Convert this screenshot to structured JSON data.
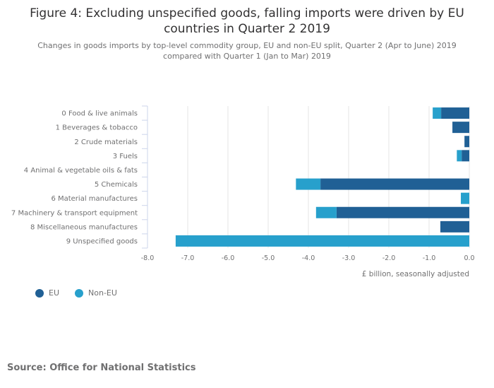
{
  "title_line1": "Figure 4: Excluding unspecified goods, falling imports were driven by EU",
  "title_line2": "countries in Quarter 2 2019",
  "subtitle_line1": "Changes in goods imports by top-level commodity group, EU and non-EU split, Quarter 2 (Apr to June) 2019",
  "subtitle_line2": "compared with Quarter 1 (Jan to Mar) 2019",
  "source": "Source: Office for National Statistics",
  "colors": {
    "eu": "#206095",
    "non_eu": "#27a0cc",
    "grid": "#e6e6e6",
    "axis": "#ccd6eb"
  },
  "chart_data": {
    "type": "bar",
    "orientation": "horizontal",
    "stacked": true,
    "title": "Figure 4: Excluding unspecified goods, falling imports were driven by EU countries in Quarter 2 2019",
    "subtitle": "Changes in goods imports by top-level commodity group, EU and non-EU split, Quarter 2 (Apr to June) 2019 compared with Quarter 1 (Jan to Mar) 2019",
    "categories": [
      "0 Food & live animals",
      "1 Beverages & tobacco",
      "2 Crude materials",
      "3 Fuels",
      "4 Animal & vegetable oils & fats",
      "5 Chemicals",
      "6 Material manufactures",
      "7 Machinery & transport equipment",
      "8 Miscellaneous manufactures",
      "9 Unspecified goods"
    ],
    "series": [
      {
        "name": "EU",
        "color": "#206095",
        "values": [
          -0.7,
          -0.42,
          -0.12,
          -0.19,
          0.0,
          -3.7,
          0.0,
          -3.3,
          -0.72,
          0.0
        ]
      },
      {
        "name": "Non-EU",
        "color": "#27a0cc",
        "values": [
          -0.21,
          0.0,
          0.0,
          -0.12,
          0.0,
          -0.61,
          -0.21,
          -0.51,
          0.0,
          -7.3
        ]
      }
    ],
    "xlabel": "£ billion, seasonally adjusted",
    "ylabel": "",
    "xlim": [
      -8.0,
      0.0
    ],
    "xticks": [
      "-8.0",
      "-7.0",
      "-6.0",
      "-5.0",
      "-4.0",
      "-3.0",
      "-2.0",
      "-1.0",
      "0.0"
    ],
    "xtick_values": [
      -8,
      -7,
      -6,
      -5,
      -4,
      -3,
      -2,
      -1,
      0
    ],
    "grid": true,
    "legend_position": "bottom-left"
  }
}
